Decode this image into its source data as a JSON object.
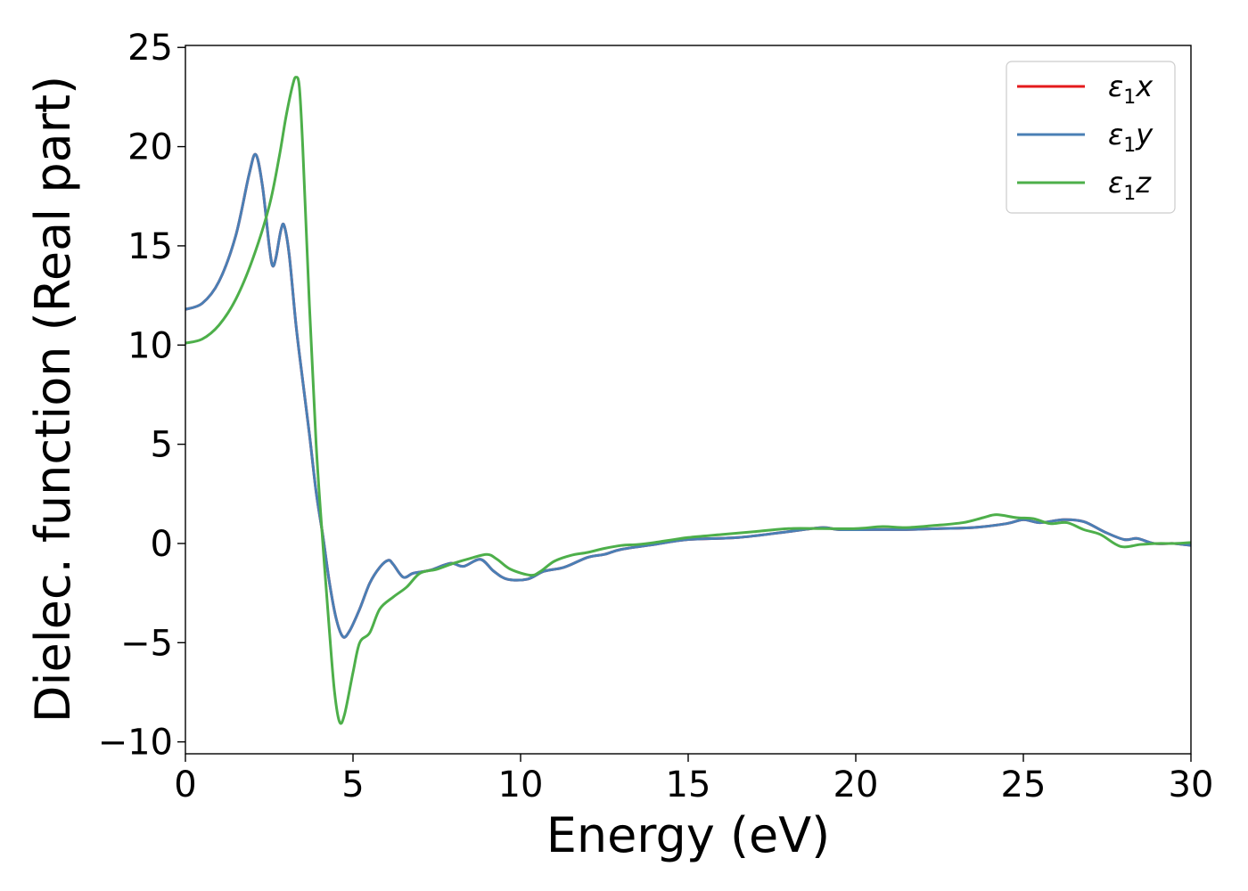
{
  "chart_data": {
    "type": "line",
    "title": "",
    "xlabel": "Energy (eV)",
    "ylabel": "Dielec. function (Real part)",
    "xlim": [
      0,
      30
    ],
    "ylim": [
      -10.6,
      25.1
    ],
    "xticks": [
      0,
      5,
      10,
      15,
      20,
      25,
      30
    ],
    "xtick_labels": [
      "0",
      "5",
      "10",
      "15",
      "20",
      "25",
      "30"
    ],
    "yticks": [
      -10,
      -5,
      0,
      5,
      10,
      15,
      20,
      25
    ],
    "ytick_labels": [
      "−10",
      "−5",
      "0",
      "5",
      "10",
      "15",
      "20",
      "25"
    ],
    "grid": false,
    "legend_position": "top-right",
    "series": [
      {
        "name": "ε",
        "sub": "1",
        "suffix": "x",
        "color": "#e41a1c",
        "points": [
          [
            0,
            11.8
          ],
          [
            0.5,
            12.1
          ],
          [
            1.0,
            13.2
          ],
          [
            1.5,
            15.5
          ],
          [
            1.9,
            18.6
          ],
          [
            2.1,
            19.6
          ],
          [
            2.3,
            18.0
          ],
          [
            2.5,
            15.0
          ],
          [
            2.6,
            14.0
          ],
          [
            2.7,
            14.4
          ],
          [
            2.85,
            15.8
          ],
          [
            2.95,
            16.0
          ],
          [
            3.1,
            14.5
          ],
          [
            3.3,
            11.0
          ],
          [
            3.5,
            8.2
          ],
          [
            3.7,
            5.5
          ],
          [
            3.9,
            2.6
          ],
          [
            4.1,
            0.4
          ],
          [
            4.3,
            -2.0
          ],
          [
            4.5,
            -3.8
          ],
          [
            4.7,
            -4.7
          ],
          [
            4.9,
            -4.4
          ],
          [
            5.2,
            -3.3
          ],
          [
            5.5,
            -2.0
          ],
          [
            5.8,
            -1.2
          ],
          [
            6.05,
            -0.85
          ],
          [
            6.2,
            -1.05
          ],
          [
            6.5,
            -1.7
          ],
          [
            6.8,
            -1.5
          ],
          [
            7.3,
            -1.35
          ],
          [
            7.9,
            -1.0
          ],
          [
            8.3,
            -1.15
          ],
          [
            8.8,
            -0.8
          ],
          [
            9.2,
            -1.4
          ],
          [
            9.6,
            -1.8
          ],
          [
            10.2,
            -1.8
          ],
          [
            10.7,
            -1.4
          ],
          [
            11.3,
            -1.2
          ],
          [
            12.0,
            -0.7
          ],
          [
            12.5,
            -0.55
          ],
          [
            13.0,
            -0.3
          ],
          [
            14.0,
            -0.05
          ],
          [
            15.0,
            0.2
          ],
          [
            16.5,
            0.3
          ],
          [
            18.0,
            0.6
          ],
          [
            19.0,
            0.8
          ],
          [
            19.5,
            0.7
          ],
          [
            20.5,
            0.7
          ],
          [
            21.5,
            0.7
          ],
          [
            22.5,
            0.75
          ],
          [
            23.5,
            0.8
          ],
          [
            24.5,
            1.0
          ],
          [
            25.0,
            1.2
          ],
          [
            25.5,
            1.05
          ],
          [
            26.2,
            1.2
          ],
          [
            26.8,
            1.1
          ],
          [
            27.4,
            0.6
          ],
          [
            28.0,
            0.2
          ],
          [
            28.4,
            0.25
          ],
          [
            28.9,
            0.0
          ],
          [
            29.5,
            0.0
          ],
          [
            30.0,
            -0.1
          ]
        ]
      },
      {
        "name": "ε",
        "sub": "1",
        "suffix": "y",
        "color": "#4a7fb5",
        "points": [
          [
            0,
            11.8
          ],
          [
            0.5,
            12.1
          ],
          [
            1.0,
            13.2
          ],
          [
            1.5,
            15.5
          ],
          [
            1.9,
            18.6
          ],
          [
            2.1,
            19.6
          ],
          [
            2.3,
            18.0
          ],
          [
            2.5,
            15.0
          ],
          [
            2.6,
            14.0
          ],
          [
            2.7,
            14.4
          ],
          [
            2.85,
            15.8
          ],
          [
            2.95,
            16.0
          ],
          [
            3.1,
            14.5
          ],
          [
            3.3,
            11.0
          ],
          [
            3.5,
            8.2
          ],
          [
            3.7,
            5.5
          ],
          [
            3.9,
            2.6
          ],
          [
            4.1,
            0.4
          ],
          [
            4.3,
            -2.0
          ],
          [
            4.5,
            -3.8
          ],
          [
            4.7,
            -4.7
          ],
          [
            4.9,
            -4.4
          ],
          [
            5.2,
            -3.3
          ],
          [
            5.5,
            -2.0
          ],
          [
            5.8,
            -1.2
          ],
          [
            6.05,
            -0.85
          ],
          [
            6.2,
            -1.05
          ],
          [
            6.5,
            -1.7
          ],
          [
            6.8,
            -1.5
          ],
          [
            7.3,
            -1.35
          ],
          [
            7.9,
            -1.0
          ],
          [
            8.3,
            -1.15
          ],
          [
            8.8,
            -0.8
          ],
          [
            9.2,
            -1.4
          ],
          [
            9.6,
            -1.8
          ],
          [
            10.2,
            -1.8
          ],
          [
            10.7,
            -1.4
          ],
          [
            11.3,
            -1.2
          ],
          [
            12.0,
            -0.7
          ],
          [
            12.5,
            -0.55
          ],
          [
            13.0,
            -0.3
          ],
          [
            14.0,
            -0.05
          ],
          [
            15.0,
            0.2
          ],
          [
            16.5,
            0.3
          ],
          [
            18.0,
            0.6
          ],
          [
            19.0,
            0.8
          ],
          [
            19.5,
            0.7
          ],
          [
            20.5,
            0.7
          ],
          [
            21.5,
            0.7
          ],
          [
            22.5,
            0.75
          ],
          [
            23.5,
            0.8
          ],
          [
            24.5,
            1.0
          ],
          [
            25.0,
            1.2
          ],
          [
            25.5,
            1.05
          ],
          [
            26.2,
            1.2
          ],
          [
            26.8,
            1.1
          ],
          [
            27.4,
            0.6
          ],
          [
            28.0,
            0.2
          ],
          [
            28.4,
            0.25
          ],
          [
            28.9,
            0.0
          ],
          [
            29.5,
            0.0
          ],
          [
            30.0,
            -0.1
          ]
        ]
      },
      {
        "name": "ε",
        "sub": "1",
        "suffix": "z",
        "color": "#4daf4a",
        "points": [
          [
            0,
            10.1
          ],
          [
            0.5,
            10.3
          ],
          [
            1.0,
            11.0
          ],
          [
            1.5,
            12.3
          ],
          [
            2.0,
            14.3
          ],
          [
            2.5,
            17.0
          ],
          [
            2.8,
            19.5
          ],
          [
            3.0,
            21.5
          ],
          [
            3.2,
            23.1
          ],
          [
            3.3,
            23.5
          ],
          [
            3.4,
            23.0
          ],
          [
            3.5,
            20.0
          ],
          [
            3.7,
            12.0
          ],
          [
            3.9,
            5.0
          ],
          [
            4.1,
            0.0
          ],
          [
            4.3,
            -4.5
          ],
          [
            4.45,
            -7.5
          ],
          [
            4.6,
            -9.0
          ],
          [
            4.75,
            -8.6
          ],
          [
            5.0,
            -6.5
          ],
          [
            5.2,
            -5.0
          ],
          [
            5.5,
            -4.5
          ],
          [
            5.8,
            -3.3
          ],
          [
            6.2,
            -2.7
          ],
          [
            6.6,
            -2.2
          ],
          [
            7.0,
            -1.5
          ],
          [
            7.5,
            -1.3
          ],
          [
            8.0,
            -1.0
          ],
          [
            8.5,
            -0.75
          ],
          [
            9.0,
            -0.55
          ],
          [
            9.3,
            -0.8
          ],
          [
            9.7,
            -1.3
          ],
          [
            10.3,
            -1.6
          ],
          [
            10.6,
            -1.4
          ],
          [
            11.0,
            -0.9
          ],
          [
            11.5,
            -0.6
          ],
          [
            12.0,
            -0.45
          ],
          [
            12.5,
            -0.25
          ],
          [
            13.0,
            -0.1
          ],
          [
            13.5,
            -0.05
          ],
          [
            14.0,
            0.05
          ],
          [
            15.0,
            0.3
          ],
          [
            16.0,
            0.45
          ],
          [
            17.0,
            0.6
          ],
          [
            18.0,
            0.75
          ],
          [
            19.0,
            0.75
          ],
          [
            20.0,
            0.75
          ],
          [
            20.8,
            0.85
          ],
          [
            21.5,
            0.8
          ],
          [
            22.3,
            0.9
          ],
          [
            23.2,
            1.05
          ],
          [
            23.8,
            1.3
          ],
          [
            24.2,
            1.45
          ],
          [
            24.8,
            1.3
          ],
          [
            25.3,
            1.25
          ],
          [
            25.8,
            1.0
          ],
          [
            26.3,
            1.05
          ],
          [
            26.8,
            0.7
          ],
          [
            27.3,
            0.45
          ],
          [
            27.9,
            -0.15
          ],
          [
            28.5,
            -0.05
          ],
          [
            29.0,
            0.0
          ],
          [
            29.5,
            0.0
          ],
          [
            30.0,
            0.05
          ]
        ]
      }
    ]
  }
}
